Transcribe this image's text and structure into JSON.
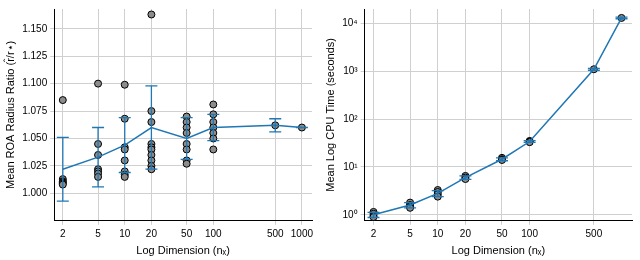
{
  "chart_data": [
    {
      "type": "scatter",
      "x_label": "Log Dimension (nₓ)",
      "y_label": "Mean ROA Radius Ratio (r̂/r⋆)",
      "log": "x",
      "grid": true,
      "xlim": [
        1.6,
        1300
      ],
      "xticks": [
        2,
        5,
        10,
        20,
        50,
        100,
        500,
        1000
      ],
      "ylim": [
        0.975,
        1.168
      ],
      "yticks": [
        {
          "value": 1.0,
          "label": "1.000"
        },
        {
          "value": 1.025,
          "label": "1.025"
        },
        {
          "value": 1.05,
          "label": "1.050"
        },
        {
          "value": 1.075,
          "label": "1.075"
        },
        {
          "value": 1.1,
          "label": "1.100"
        },
        {
          "value": 1.125,
          "label": "1.125"
        },
        {
          "value": 1.15,
          "label": "1.150"
        }
      ],
      "series": [
        {
          "type": "scatter",
          "marker": "circle",
          "color": "#000000",
          "x": [
            2,
            2,
            2,
            2,
            2,
            2,
            5,
            5,
            5,
            5,
            5,
            5,
            5,
            10,
            10,
            10,
            10,
            10,
            10,
            10,
            10,
            20,
            20,
            20,
            20,
            20,
            20,
            20,
            20,
            20,
            20,
            50,
            50,
            50,
            50,
            50,
            50,
            50,
            50,
            100,
            100,
            100,
            100,
            100,
            100,
            100,
            500,
            1000
          ],
          "values": [
            1.085,
            1.013,
            1.011,
            1.01,
            1.009,
            1.008,
            1.1,
            1.045,
            1.035,
            1.022,
            1.02,
            1.018,
            1.015,
            1.099,
            1.068,
            1.042,
            1.04,
            1.03,
            1.02,
            1.017,
            1.015,
            1.163,
            1.075,
            1.065,
            1.045,
            1.042,
            1.04,
            1.035,
            1.03,
            1.025,
            1.022,
            1.07,
            1.065,
            1.06,
            1.055,
            1.045,
            1.04,
            1.03,
            1.027,
            1.081,
            1.072,
            1.065,
            1.06,
            1.055,
            1.05,
            1.04,
            1.062,
            1.06
          ]
        },
        {
          "type": "line",
          "marker": "none",
          "color": "#1f77b4",
          "x": [
            2,
            5,
            10,
            20,
            50,
            100,
            500,
            1000
          ],
          "values": [
            1.022,
            1.033,
            1.044,
            1.06,
            1.05,
            1.06,
            1.062,
            1.06
          ],
          "error": [
            0.029,
            0.027,
            0.025,
            0.038,
            0.019,
            0.012,
            0.006,
            0.0
          ]
        }
      ]
    },
    {
      "type": "scatter",
      "x_label": "Log Dimension (nₓ)",
      "y_label": "Mean Log CPU Time (seconds)",
      "log": true,
      "grid": true,
      "xlim": [
        1.6,
        1300
      ],
      "xticks": [
        2,
        5,
        10,
        20,
        50,
        100,
        500
      ],
      "ylim": [
        0.75,
        20000
      ],
      "yticks": [
        {
          "value": 1,
          "label": "10⁰"
        },
        {
          "value": 10,
          "label": "10¹"
        },
        {
          "value": 100,
          "label": "10²"
        },
        {
          "value": 1000,
          "label": "10³"
        },
        {
          "value": 10000,
          "label": "10⁴"
        }
      ],
      "series": [
        {
          "type": "scatter",
          "marker": "circle",
          "color": "#000000",
          "x": [
            2,
            2,
            2,
            2,
            5,
            5,
            5,
            5,
            10,
            10,
            10,
            10,
            20,
            20,
            20,
            50,
            50,
            50,
            100,
            100,
            100,
            500,
            1000
          ],
          "values": [
            1.15,
            1.05,
            0.95,
            0.9,
            1.8,
            1.6,
            1.5,
            1.4,
            3.3,
            3.0,
            2.7,
            2.4,
            6.5,
            6.0,
            5.6,
            15.5,
            14.5,
            14,
            35,
            34,
            33,
            1100,
            13000
          ]
        },
        {
          "type": "line",
          "marker": "none",
          "color": "#1f77b4",
          "x": [
            2,
            5,
            10,
            20,
            50,
            100,
            500,
            1000
          ],
          "values": [
            1.0,
            1.6,
            2.8,
            6.0,
            14.5,
            34,
            1100,
            13000
          ],
          "error": [
            0.12,
            0.2,
            0.4,
            0.5,
            1,
            1.5,
            50,
            500
          ]
        }
      ]
    }
  ]
}
